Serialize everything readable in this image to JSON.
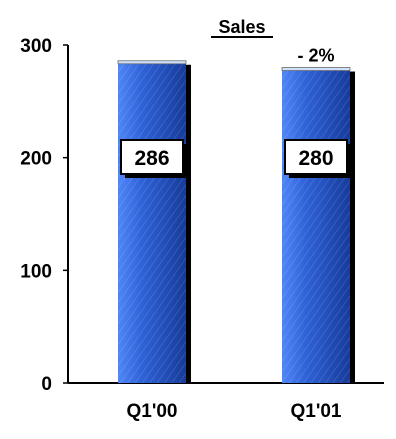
{
  "chart_data": {
    "type": "bar",
    "title": "Sales",
    "categories": [
      "Q1'00",
      "Q1'01"
    ],
    "values": [
      286,
      280
    ],
    "value_labels": [
      "286",
      "280"
    ],
    "annotations": [
      {
        "category": "Q1'01",
        "text": "- 2%"
      }
    ],
    "ylim": [
      0,
      300
    ],
    "yticks": [
      0,
      100,
      200,
      300
    ],
    "ytick_labels": [
      "0",
      "100",
      "200",
      "300"
    ],
    "xlabel": "",
    "ylabel": "",
    "grid": false,
    "legend": "none",
    "colors": {
      "bar_light": "#4f86f7",
      "bar_mid": "#2f62d8",
      "bar_dark": "#163b9a",
      "bar_shadow": "#000000",
      "axis": "#000000",
      "label_box_fill": "#ffffff"
    }
  }
}
